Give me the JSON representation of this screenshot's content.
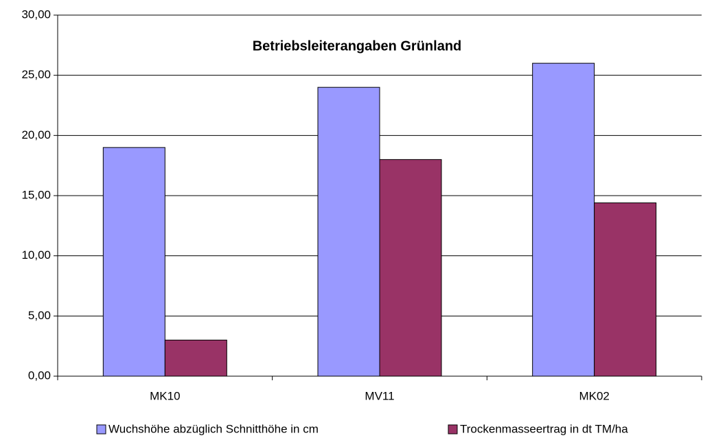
{
  "chart_data": {
    "type": "bar",
    "title": "Betriebsleiterangaben Grünland",
    "categories": [
      "MK10",
      "MV11",
      "MK02"
    ],
    "series": [
      {
        "name": "Wuchshöhe abzüglich Schnitthöhe in cm",
        "color": "#9999ff",
        "values": [
          19,
          24,
          26
        ]
      },
      {
        "name": "Trockenmasseertrag in dt TM/ha",
        "color": "#993366",
        "values": [
          3,
          18,
          14.4
        ]
      }
    ],
    "ylim": [
      0,
      30
    ],
    "yticks": [
      {
        "value": 0,
        "label": "0,00"
      },
      {
        "value": 5,
        "label": "5,00"
      },
      {
        "value": 10,
        "label": "10,00"
      },
      {
        "value": 15,
        "label": "15,00"
      },
      {
        "value": 20,
        "label": "20,00"
      },
      {
        "value": 25,
        "label": "25,00"
      },
      {
        "value": 30,
        "label": "30,00"
      }
    ],
    "grid": true,
    "legend": "bottom"
  }
}
